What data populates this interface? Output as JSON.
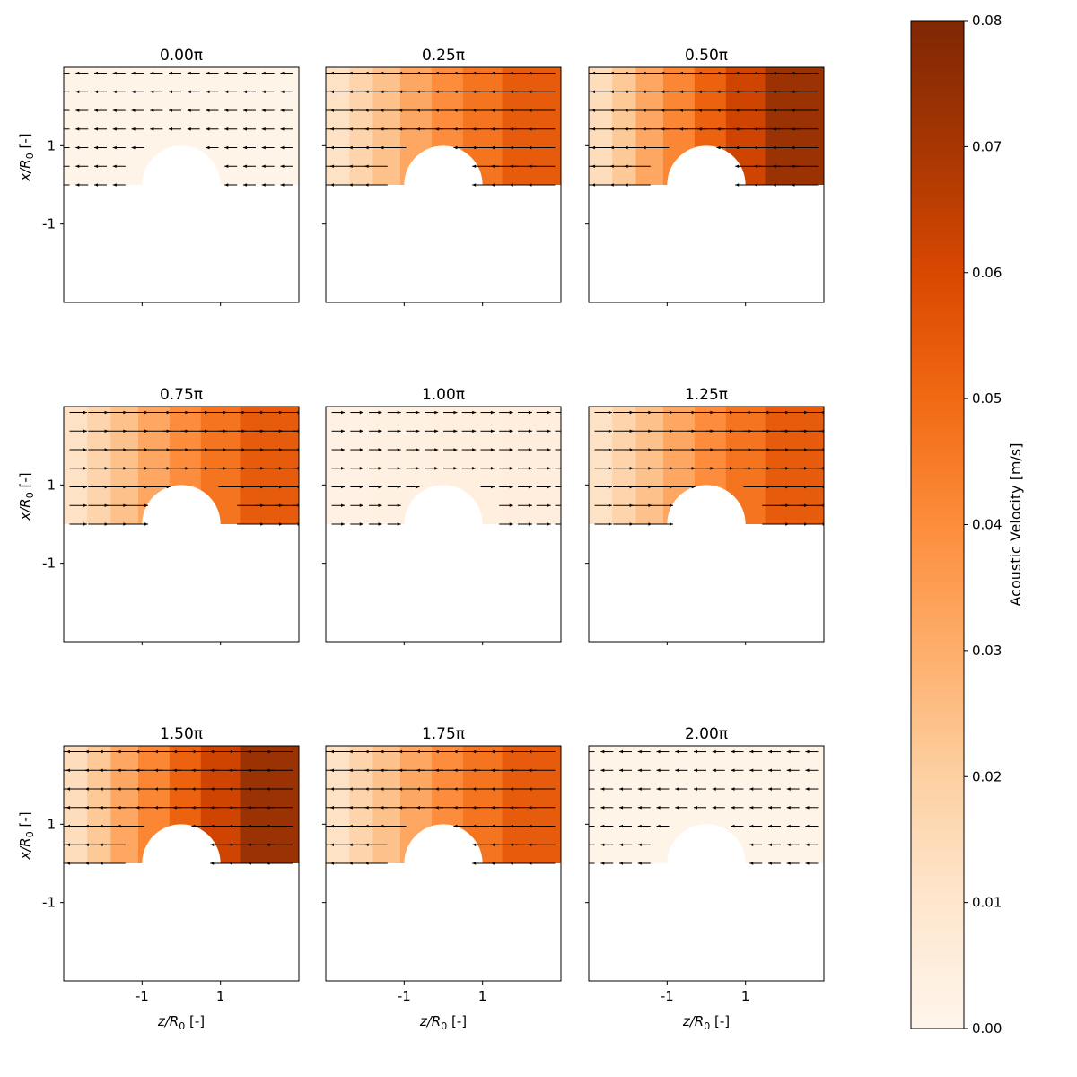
{
  "chart_data": {
    "type": "heatmap",
    "colorbar": {
      "label": "Acoustic Velocity [m/s]",
      "range": [
        0,
        0.08
      ],
      "ticks": [
        "0.00",
        "0.01",
        "0.02",
        "0.03",
        "0.04",
        "0.05",
        "0.06",
        "0.07",
        "0.08"
      ],
      "colors": [
        "#fff5eb",
        "#fee6ce",
        "#fdd0a2",
        "#fdae6b",
        "#fd8d3c",
        "#f16913",
        "#d94801",
        "#a63603",
        "#7f2704"
      ]
    },
    "xlabel": "z/R₀ [-]",
    "ylabel": "x/R₀ [-]",
    "xlim": [
      -3,
      3
    ],
    "ylim": [
      -3,
      3
    ],
    "xticks": [
      "-1",
      "1"
    ],
    "yticks": [
      "1",
      "-1"
    ],
    "obstacle_radius": 1,
    "z_bands": [
      -3,
      -2.4,
      -1.8,
      -1.1,
      -0.3,
      0.5,
      1.5,
      3
    ],
    "panels": [
      {
        "title": "0.00π",
        "band_values": [
          0.001,
          0.001,
          0.001,
          0.001,
          0.001,
          0.001,
          0.001
        ],
        "arrow_direction": "left"
      },
      {
        "title": "0.25π",
        "band_values": [
          0.012,
          0.018,
          0.024,
          0.032,
          0.04,
          0.047,
          0.054
        ],
        "arrow_direction": "left"
      },
      {
        "title": "0.50π",
        "band_values": [
          0.014,
          0.022,
          0.032,
          0.042,
          0.052,
          0.062,
          0.073
        ],
        "arrow_direction": "left"
      },
      {
        "title": "0.75π",
        "band_values": [
          0.012,
          0.018,
          0.024,
          0.032,
          0.04,
          0.047,
          0.054
        ],
        "arrow_direction": "right"
      },
      {
        "title": "1.00π",
        "band_values": [
          0.002,
          0.002,
          0.003,
          0.003,
          0.004,
          0.004,
          0.005
        ],
        "arrow_direction": "right"
      },
      {
        "title": "1.25π",
        "band_values": [
          0.012,
          0.018,
          0.024,
          0.032,
          0.04,
          0.047,
          0.054
        ],
        "arrow_direction": "right"
      },
      {
        "title": "1.50π",
        "band_values": [
          0.014,
          0.022,
          0.032,
          0.042,
          0.052,
          0.062,
          0.073
        ],
        "arrow_direction": "left"
      },
      {
        "title": "1.75π",
        "band_values": [
          0.012,
          0.018,
          0.024,
          0.032,
          0.04,
          0.047,
          0.054
        ],
        "arrow_direction": "left"
      },
      {
        "title": "2.00π",
        "band_values": [
          0.001,
          0.001,
          0.001,
          0.001,
          0.001,
          0.001,
          0.001
        ],
        "arrow_direction": "left"
      }
    ]
  }
}
